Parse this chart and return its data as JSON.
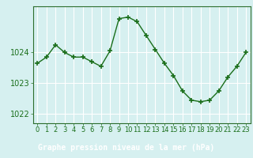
{
  "x": [
    0,
    1,
    2,
    3,
    4,
    5,
    6,
    7,
    8,
    9,
    10,
    11,
    12,
    13,
    14,
    15,
    16,
    17,
    18,
    19,
    20,
    21,
    22,
    23
  ],
  "y": [
    1023.65,
    1023.85,
    1024.25,
    1024.0,
    1023.85,
    1023.85,
    1023.7,
    1023.55,
    1024.05,
    1025.1,
    1025.15,
    1025.0,
    1024.55,
    1024.1,
    1023.65,
    1023.25,
    1022.75,
    1022.45,
    1022.4,
    1022.45,
    1022.75,
    1023.2,
    1023.55,
    1024.0
  ],
  "line_color": "#1a6e1a",
  "marker": "+",
  "bg_color": "#d6f0f0",
  "footer_bg": "#2d6e2d",
  "grid_color": "#ffffff",
  "axis_color": "#2d6e2d",
  "tick_color": "#1a6e1a",
  "label_color": "#ffffff",
  "xlabel": "Graphe pression niveau de la mer (hPa)",
  "ylabel_ticks": [
    1022,
    1023,
    1024
  ],
  "ylim": [
    1021.7,
    1025.5
  ],
  "xlim": [
    -0.5,
    23.5
  ],
  "xtick_labels": [
    "0",
    "1",
    "2",
    "3",
    "4",
    "5",
    "6",
    "7",
    "8",
    "9",
    "10",
    "11",
    "12",
    "13",
    "14",
    "15",
    "16",
    "17",
    "18",
    "19",
    "20",
    "21",
    "22",
    "23"
  ],
  "tick_fontsize": 6,
  "label_fontsize": 7,
  "ytick_fontsize": 7
}
